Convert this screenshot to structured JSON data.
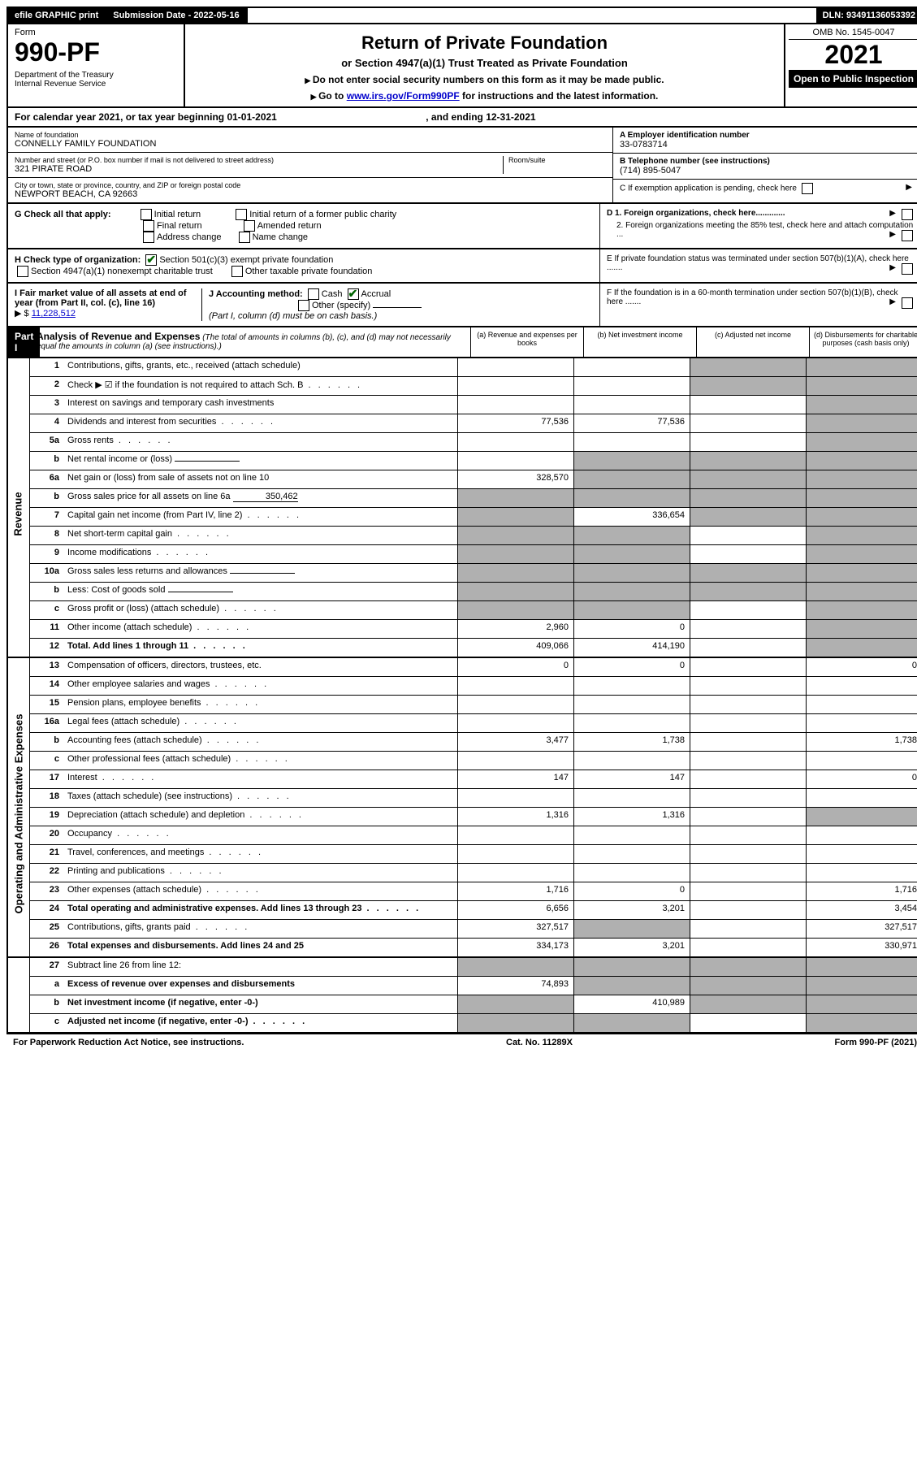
{
  "top": {
    "efile": "efile GRAPHIC print",
    "submission_label": "Submission Date - 2022-05-16",
    "dln": "DLN: 93491136053392"
  },
  "header": {
    "form_word": "Form",
    "form_number": "990-PF",
    "dept": "Department of the Treasury",
    "irs": "Internal Revenue Service",
    "title": "Return of Private Foundation",
    "subtitle": "or Section 4947(a)(1) Trust Treated as Private Foundation",
    "instr1": "Do not enter social security numbers on this form as it may be made public.",
    "instr2_prefix": "Go to ",
    "instr2_link": "www.irs.gov/Form990PF",
    "instr2_suffix": " for instructions and the latest information.",
    "omb": "OMB No. 1545-0047",
    "year": "2021",
    "open": "Open to Public Inspection"
  },
  "calendar": {
    "text_a": "For calendar year 2021, or tax year beginning ",
    "begin": "01-01-2021",
    "text_b": " , and ending ",
    "end": "12-31-2021"
  },
  "entity": {
    "name_label": "Name of foundation",
    "name": "CONNELLY FAMILY FOUNDATION",
    "addr_label": "Number and street (or P.O. box number if mail is not delivered to street address)",
    "addr": "321 PIRATE ROAD",
    "room_label": "Room/suite",
    "city_label": "City or town, state or province, country, and ZIP or foreign postal code",
    "city": "NEWPORT BEACH, CA  92663",
    "ein_label": "A Employer identification number",
    "ein": "33-0783714",
    "phone_label": "B Telephone number (see instructions)",
    "phone": "(714) 895-5047",
    "c_label": "C  If exemption application is pending, check here",
    "d1": "D 1. Foreign organizations, check here.............",
    "d2": "2. Foreign organizations meeting the 85% test, check here and attach computation ...",
    "e_label": "E  If private foundation status was terminated under section 507(b)(1)(A), check here .......",
    "f_label": "F  If the foundation is in a 60-month termination under section 507(b)(1)(B), check here .......",
    "g_label": "G Check all that apply:",
    "g_opts": [
      "Initial return",
      "Final return",
      "Address change",
      "Initial return of a former public charity",
      "Amended return",
      "Name change"
    ],
    "h_label": "H Check type of organization:",
    "h_1": "Section 501(c)(3) exempt private foundation",
    "h_2": "Section 4947(a)(1) nonexempt charitable trust",
    "h_3": "Other taxable private foundation",
    "i_label": "I Fair market value of all assets at end of year (from Part II, col. (c), line 16)",
    "i_value": "11,228,512",
    "j_label": "J Accounting method:",
    "j_cash": "Cash",
    "j_accrual": "Accrual",
    "j_other": "Other (specify)",
    "j_note": "(Part I, column (d) must be on cash basis.)"
  },
  "part1": {
    "tag": "Part I",
    "title": "Analysis of Revenue and Expenses",
    "title_note": "(The total of amounts in columns (b), (c), and (d) may not necessarily equal the amounts in column (a) (see instructions).)",
    "col_a": "(a) Revenue and expenses per books",
    "col_b": "(b) Net investment income",
    "col_c": "(c) Adjusted net income",
    "col_d": "(d) Disbursements for charitable purposes (cash basis only)",
    "side_rev": "Revenue",
    "side_opex": "Operating and Administrative Expenses"
  },
  "rows": [
    {
      "n": "1",
      "d": "Contributions, gifts, grants, etc., received (attach schedule)",
      "a": "",
      "b": "",
      "c": "s",
      "dd": "s"
    },
    {
      "n": "2",
      "d": "Check ▶ ☑ if the foundation is not required to attach Sch. B",
      "a": "",
      "b": "",
      "c": "s",
      "dd": "s",
      "dotted": true
    },
    {
      "n": "3",
      "d": "Interest on savings and temporary cash investments",
      "a": "",
      "b": "",
      "c": "",
      "dd": "s"
    },
    {
      "n": "4",
      "d": "Dividends and interest from securities",
      "a": "77,536",
      "b": "77,536",
      "c": "",
      "dd": "s",
      "dotted": true
    },
    {
      "n": "5a",
      "d": "Gross rents",
      "a": "",
      "b": "",
      "c": "",
      "dd": "s",
      "dotted": true
    },
    {
      "n": "b",
      "d": "Net rental income or (loss)",
      "a": "",
      "b": "s",
      "c": "s",
      "dd": "s",
      "fill": true
    },
    {
      "n": "6a",
      "d": "Net gain or (loss) from sale of assets not on line 10",
      "a": "328,570",
      "b": "s",
      "c": "s",
      "dd": "s"
    },
    {
      "n": "b",
      "d": "Gross sales price for all assets on line 6a",
      "a": "s",
      "b": "s",
      "c": "s",
      "dd": "s",
      "fill": true,
      "fillval": "350,462"
    },
    {
      "n": "7",
      "d": "Capital gain net income (from Part IV, line 2)",
      "a": "s",
      "b": "336,654",
      "c": "s",
      "dd": "s",
      "dotted": true
    },
    {
      "n": "8",
      "d": "Net short-term capital gain",
      "a": "s",
      "b": "s",
      "c": "",
      "dd": "s",
      "dotted": true
    },
    {
      "n": "9",
      "d": "Income modifications",
      "a": "s",
      "b": "s",
      "c": "",
      "dd": "s",
      "dotted": true
    },
    {
      "n": "10a",
      "d": "Gross sales less returns and allowances",
      "a": "s",
      "b": "s",
      "c": "s",
      "dd": "s",
      "fill": true
    },
    {
      "n": "b",
      "d": "Less: Cost of goods sold",
      "a": "s",
      "b": "s",
      "c": "s",
      "dd": "s",
      "fill": true,
      "dotted": true
    },
    {
      "n": "c",
      "d": "Gross profit or (loss) (attach schedule)",
      "a": "s",
      "b": "s",
      "c": "",
      "dd": "s",
      "dotted": true
    },
    {
      "n": "11",
      "d": "Other income (attach schedule)",
      "a": "2,960",
      "b": "0",
      "c": "",
      "dd": "s",
      "dotted": true
    },
    {
      "n": "12",
      "d": "Total. Add lines 1 through 11",
      "a": "409,066",
      "b": "414,190",
      "c": "",
      "dd": "s",
      "bold": true,
      "dotted": true
    }
  ],
  "rows2": [
    {
      "n": "13",
      "d": "Compensation of officers, directors, trustees, etc.",
      "a": "0",
      "b": "0",
      "c": "",
      "dd": "0"
    },
    {
      "n": "14",
      "d": "Other employee salaries and wages",
      "a": "",
      "b": "",
      "c": "",
      "dd": "",
      "dotted": true
    },
    {
      "n": "15",
      "d": "Pension plans, employee benefits",
      "a": "",
      "b": "",
      "c": "",
      "dd": "",
      "dotted": true
    },
    {
      "n": "16a",
      "d": "Legal fees (attach schedule)",
      "a": "",
      "b": "",
      "c": "",
      "dd": "",
      "dotted": true
    },
    {
      "n": "b",
      "d": "Accounting fees (attach schedule)",
      "a": "3,477",
      "b": "1,738",
      "c": "",
      "dd": "1,738",
      "dotted": true
    },
    {
      "n": "c",
      "d": "Other professional fees (attach schedule)",
      "a": "",
      "b": "",
      "c": "",
      "dd": "",
      "dotted": true
    },
    {
      "n": "17",
      "d": "Interest",
      "a": "147",
      "b": "147",
      "c": "",
      "dd": "0",
      "dotted": true
    },
    {
      "n": "18",
      "d": "Taxes (attach schedule) (see instructions)",
      "a": "",
      "b": "",
      "c": "",
      "dd": "",
      "dotted": true
    },
    {
      "n": "19",
      "d": "Depreciation (attach schedule) and depletion",
      "a": "1,316",
      "b": "1,316",
      "c": "",
      "dd": "s",
      "dotted": true
    },
    {
      "n": "20",
      "d": "Occupancy",
      "a": "",
      "b": "",
      "c": "",
      "dd": "",
      "dotted": true
    },
    {
      "n": "21",
      "d": "Travel, conferences, and meetings",
      "a": "",
      "b": "",
      "c": "",
      "dd": "",
      "dotted": true
    },
    {
      "n": "22",
      "d": "Printing and publications",
      "a": "",
      "b": "",
      "c": "",
      "dd": "",
      "dotted": true
    },
    {
      "n": "23",
      "d": "Other expenses (attach schedule)",
      "a": "1,716",
      "b": "0",
      "c": "",
      "dd": "1,716",
      "dotted": true
    },
    {
      "n": "24",
      "d": "Total operating and administrative expenses. Add lines 13 through 23",
      "a": "6,656",
      "b": "3,201",
      "c": "",
      "dd": "3,454",
      "bold": true,
      "dotted": true
    },
    {
      "n": "25",
      "d": "Contributions, gifts, grants paid",
      "a": "327,517",
      "b": "s",
      "c": "",
      "dd": "327,517",
      "dotted": true
    },
    {
      "n": "26",
      "d": "Total expenses and disbursements. Add lines 24 and 25",
      "a": "334,173",
      "b": "3,201",
      "c": "",
      "dd": "330,971",
      "bold": true
    }
  ],
  "rows3": [
    {
      "n": "27",
      "d": "Subtract line 26 from line 12:",
      "a": "s",
      "b": "s",
      "c": "s",
      "dd": "s"
    },
    {
      "n": "a",
      "d": "Excess of revenue over expenses and disbursements",
      "a": "74,893",
      "b": "s",
      "c": "s",
      "dd": "s",
      "bold": true
    },
    {
      "n": "b",
      "d": "Net investment income (if negative, enter -0-)",
      "a": "s",
      "b": "410,989",
      "c": "s",
      "dd": "s",
      "bold": true
    },
    {
      "n": "c",
      "d": "Adjusted net income (if negative, enter -0-)",
      "a": "s",
      "b": "s",
      "c": "",
      "dd": "s",
      "bold": true,
      "dotted": true
    }
  ],
  "footer": {
    "left": "For Paperwork Reduction Act Notice, see instructions.",
    "mid": "Cat. No. 11289X",
    "right": "Form 990-PF (2021)"
  },
  "colors": {
    "link": "#0000cc",
    "shaded": "#b0b0b0",
    "check": "#006400"
  }
}
